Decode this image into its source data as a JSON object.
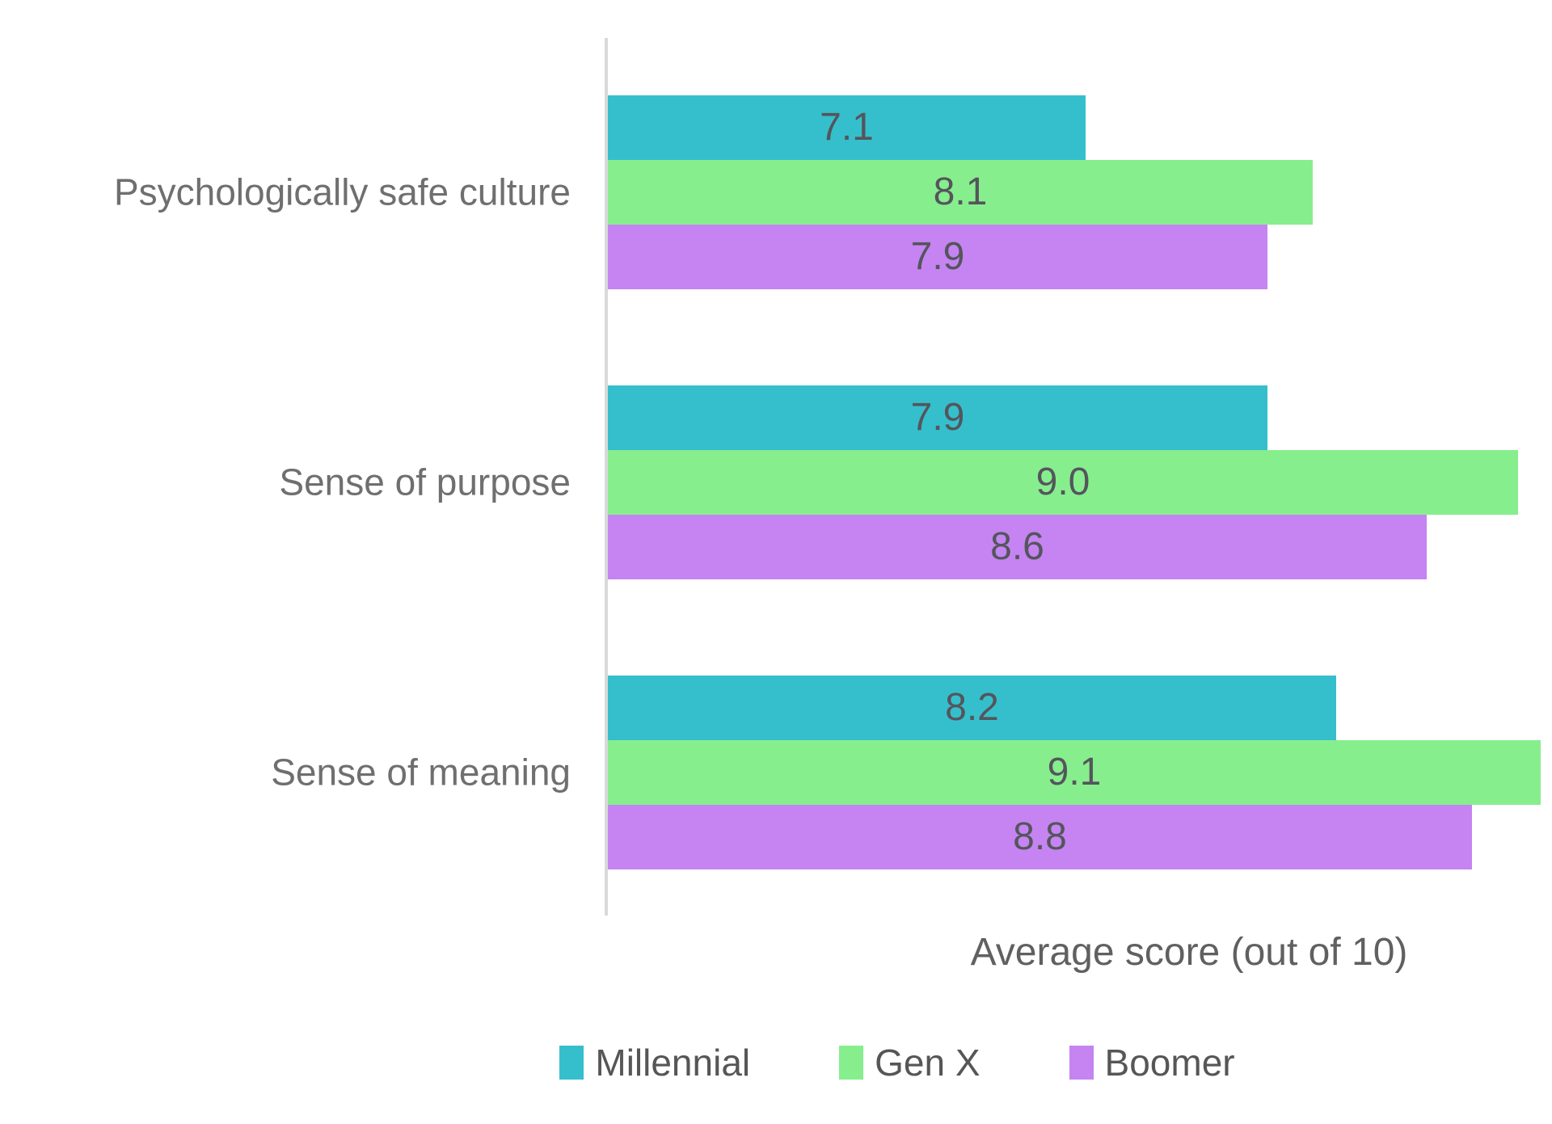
{
  "chart_data": {
    "type": "bar",
    "orientation": "horizontal",
    "title": "",
    "xlabel": "Average score (out of 10)",
    "ylabel": "",
    "categories": [
      "Psychologically safe culture",
      "Sense of purpose",
      "Sense of meaning"
    ],
    "series": [
      {
        "name": "Millennial",
        "color": "#35bfcc",
        "values": [
          7.1,
          7.9,
          8.2
        ]
      },
      {
        "name": "Gen X",
        "color": "#87ee8e",
        "values": [
          8.1,
          9.0,
          9.1
        ]
      },
      {
        "name": "Boomer",
        "color": "#c584f2",
        "values": [
          7.9,
          8.6,
          8.8
        ]
      }
    ],
    "xlim": [
      5,
      9.15
    ],
    "x_axis_ticks_visible": false,
    "grid": false,
    "value_labels": "center",
    "value_label_format": "0.0",
    "legend_position": "bottom",
    "colors": {
      "axis_line": "#d9d9d9",
      "category_label_text": "#6f6f6f",
      "value_label_text": "#54555c",
      "axis_label_text": "#606060",
      "legend_text": "#565656",
      "background": "#ffffff"
    }
  }
}
